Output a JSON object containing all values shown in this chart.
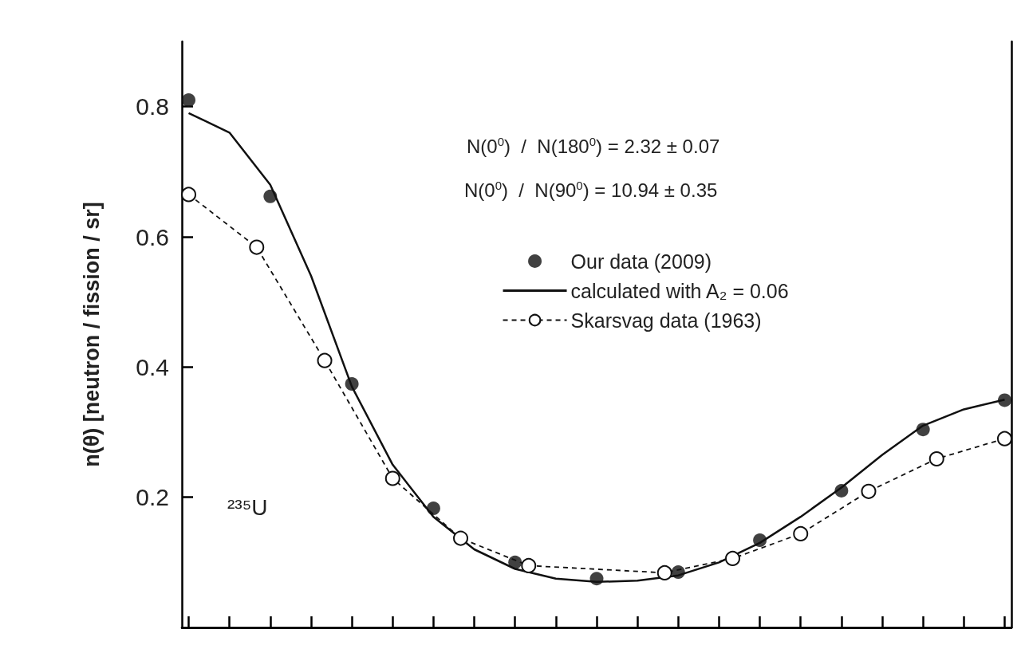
{
  "chart_data": {
    "type": "line",
    "ylabel": "n(θ) [neutron / fission / sr]",
    "categories": [
      null,
      null,
      null,
      null,
      null,
      null,
      null,
      null,
      null,
      null,
      null,
      null,
      null,
      null,
      null,
      null,
      null,
      null,
      null,
      null,
      null,
      null,
      null,
      null,
      null,
      null,
      null,
      null,
      null,
      null,
      null,
      null,
      null,
      null,
      null,
      null,
      null,
      null,
      null,
      null,
      null,
      null,
      null,
      null,
      null,
      null,
      null,
      null,
      null,
      null,
      null,
      null,
      null,
      null,
      null,
      null,
      null,
      null,
      null,
      null,
      null
    ],
    "ylim": [
      0,
      0.9
    ],
    "yticks": [
      0.2,
      0.4,
      0.6,
      0.8
    ],
    "tick_labels": "y",
    "legend": "top right",
    "annotations": [
      "N(0$^{0}$)  /  N(180$^{0}$) = 2.32 ± 0.07",
      "N(0$^{0}$)  /  N(90$^{0}$) = 10.94 ± 0.35",
      "²³⁵U"
    ],
    "series": [
      {
        "name": "Our data (2009)",
        "type": "scatter",
        "color": "#111111",
        "marker": "circle",
        "values": [
          0.81,
          null,
          null,
          null,
          null,
          null,
          0.662,
          null,
          null,
          null,
          null,
          null,
          0.374,
          null,
          null,
          null,
          null,
          null,
          0.183,
          null,
          null,
          null,
          null,
          null,
          0.1,
          null,
          null,
          null,
          null,
          null,
          0.075,
          null,
          null,
          null,
          null,
          null,
          0.085,
          null,
          null,
          null,
          null,
          null,
          0.134,
          null,
          null,
          null,
          null,
          null,
          0.21,
          null,
          null,
          null,
          null,
          null,
          0.304,
          null,
          null,
          null,
          null,
          null,
          0.349
        ]
      },
      {
        "name": "calculated with A₂ = 0.06",
        "color": "#111111",
        "marker": "none",
        "line_style": "solid",
        "values": [
          0.79,
          null,
          null,
          0.76,
          null,
          null,
          0.68,
          null,
          null,
          0.54,
          null,
          null,
          0.37,
          null,
          null,
          0.25,
          null,
          null,
          0.17,
          null,
          null,
          0.12,
          null,
          null,
          0.09,
          null,
          null,
          0.075,
          null,
          null,
          0.07,
          null,
          null,
          0.072,
          null,
          null,
          0.08,
          null,
          null,
          0.1,
          null,
          null,
          0.13,
          null,
          null,
          0.17,
          null,
          null,
          0.215,
          null,
          null,
          0.265,
          null,
          null,
          0.31,
          null,
          null,
          0.335,
          null,
          null,
          0.35
        ]
      },
      {
        "name": "Skarsvag data (1963)",
        "color": "#111111",
        "marker": "circle",
        "line_style": "dashed",
        "values": [
          0.665,
          null,
          null,
          null,
          null,
          0.584,
          null,
          null,
          null,
          null,
          0.41,
          null,
          null,
          null,
          null,
          0.229,
          null,
          null,
          null,
          null,
          0.137,
          null,
          null,
          null,
          null,
          0.095,
          null,
          null,
          null,
          null,
          null,
          null,
          null,
          null,
          null,
          0.084,
          null,
          null,
          null,
          null,
          0.106,
          null,
          null,
          null,
          null,
          0.144,
          null,
          null,
          null,
          null,
          0.209,
          null,
          null,
          null,
          null,
          0.259,
          null,
          null,
          null,
          null,
          0.29
        ]
      }
    ]
  }
}
